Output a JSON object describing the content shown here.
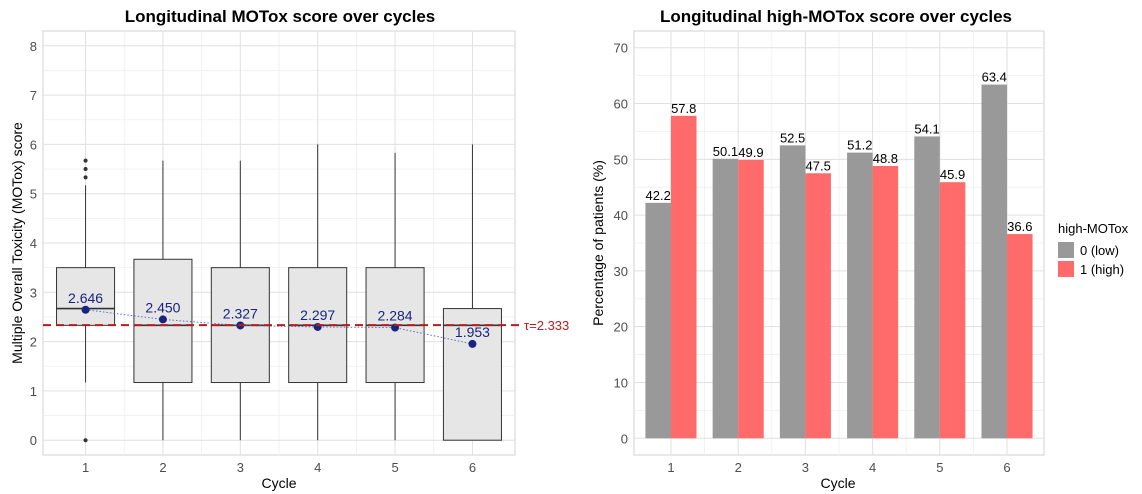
{
  "chart_data": [
    {
      "type": "box",
      "title": "Longitudinal MOTox score over cycles",
      "xlabel": "Cycle",
      "ylabel": "Multiple Overall Toxicity (MOTox) score",
      "ylim": [
        -0.3,
        8.3
      ],
      "yticks": [
        "0",
        "1",
        "2",
        "3",
        "4",
        "5",
        "6",
        "7",
        "8"
      ],
      "categories": [
        "1",
        "2",
        "3",
        "4",
        "5",
        "6"
      ],
      "boxes": [
        {
          "min": 1.17,
          "q1": 2.33,
          "median": 2.67,
          "q3": 3.5,
          "max": 5.17,
          "outliers": [
            0,
            5.33,
            5.5,
            5.67
          ]
        },
        {
          "min": 0,
          "q1": 1.17,
          "median": 2.33,
          "q3": 3.67,
          "max": 5.67,
          "outliers": []
        },
        {
          "min": 0,
          "q1": 1.17,
          "median": 2.33,
          "q3": 3.5,
          "max": 5.67,
          "outliers": []
        },
        {
          "min": 0,
          "q1": 1.17,
          "median": 2.33,
          "q3": 3.5,
          "max": 6.0,
          "outliers": []
        },
        {
          "min": 0,
          "q1": 1.17,
          "median": 2.33,
          "q3": 3.5,
          "max": 5.83,
          "outliers": []
        },
        {
          "min": 0,
          "q1": 0,
          "median": 2.33,
          "q3": 2.67,
          "max": 6.0,
          "outliers": []
        }
      ],
      "means": [
        2.646,
        2.45,
        2.327,
        2.297,
        2.284,
        1.953
      ],
      "mean_labels": [
        "2.646",
        "2.450",
        "2.327",
        "2.297",
        "2.284",
        "1.953"
      ],
      "threshold": {
        "value": 2.333,
        "label": "τ=2.333",
        "color": "#b71c1c"
      },
      "colors": {
        "box_fill": "#e6e6e6",
        "mean_point": "#1a237e"
      }
    },
    {
      "type": "bar",
      "title": "Longitudinal high-MOTox score over cycles",
      "xlabel": "Cycle",
      "ylabel": "Percentage of patients (%)",
      "ylim": [
        -3,
        73
      ],
      "yticks": [
        "0",
        "10",
        "20",
        "30",
        "40",
        "50",
        "60",
        "70"
      ],
      "categories": [
        "1",
        "2",
        "3",
        "4",
        "5",
        "6"
      ],
      "legend_title": "high-MOTox",
      "legend_position": "right",
      "series": [
        {
          "name": "0 (low)",
          "color": "#999999",
          "values": [
            42.2,
            50.1,
            52.5,
            51.2,
            54.1,
            63.4
          ],
          "labels": [
            "42.2",
            "50.1",
            "52.5",
            "51.2",
            "54.1",
            "63.4"
          ]
        },
        {
          "name": "1 (high)",
          "color": "#ff6b6b",
          "values": [
            57.8,
            49.9,
            47.5,
            48.8,
            45.9,
            36.6
          ],
          "labels": [
            "57.8",
            "49.9",
            "47.5",
            "48.8",
            "45.9",
            "36.6"
          ]
        }
      ]
    }
  ]
}
